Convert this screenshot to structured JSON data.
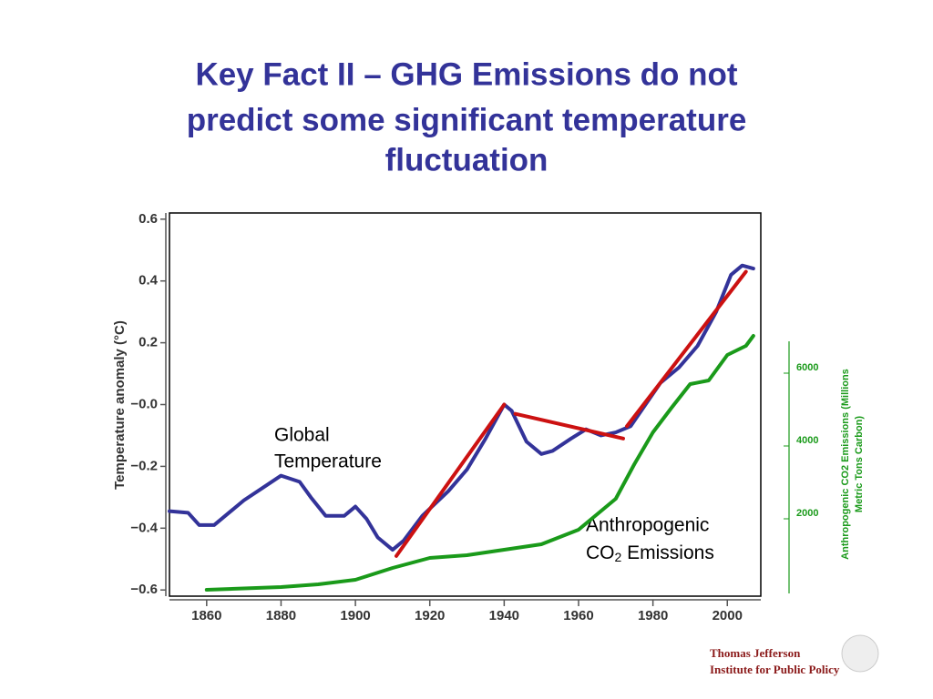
{
  "title_lines": [
    "Key Fact II – GHG Emissions do not",
    "predict some significant temperature",
    "fluctuation"
  ],
  "chart_data": {
    "type": "line",
    "ylabel": "Temperature anomaly (°C)",
    "y2label_lines": [
      "Anthropogenic CO2 Emissions (Millions",
      "Metric Tons Carbon)"
    ],
    "xlim": [
      1850,
      2009
    ],
    "xticks": [
      1860,
      1880,
      1900,
      1920,
      1940,
      1960,
      1980,
      2000
    ],
    "ylim": [
      -0.62,
      0.62
    ],
    "yticks": [
      0.6,
      0.4,
      0.2,
      {
        "value": 0,
        "label": "−0.0"
      },
      {
        "value": -0.2,
        "label": "−0.2"
      },
      {
        "value": -0.4,
        "label": "−0.4"
      },
      {
        "value": -0.6,
        "label": "−0.6"
      }
    ],
    "y2lim": [
      -125,
      10400
    ],
    "y2ticks": [
      2000,
      4000,
      6000
    ],
    "annotations": [
      {
        "lines": [
          "Global",
          "Temperature"
        ]
      },
      {
        "lines": [
          "Anthropogenic"
        ],
        "formula": [
          "CO",
          "2",
          " Emissions"
        ]
      }
    ],
    "series": [
      {
        "color": "#333399",
        "x": [
          1850,
          1855,
          1858,
          1862,
          1866,
          1870,
          1875,
          1880,
          1885,
          1888,
          1892,
          1897,
          1900,
          1903,
          1906,
          1910,
          1913,
          1918,
          1925,
          1930,
          1935,
          1940,
          1942,
          1946,
          1950,
          1953,
          1958,
          1962,
          1966,
          1970,
          1974,
          1978,
          1982,
          1987,
          1992,
          1997,
          2001,
          2004,
          2007
        ],
        "values": [
          -0.345,
          -0.35,
          -0.39,
          -0.39,
          -0.35,
          -0.31,
          -0.27,
          -0.23,
          -0.25,
          -0.3,
          -0.36,
          -0.36,
          -0.33,
          -0.37,
          -0.43,
          -0.47,
          -0.44,
          -0.36,
          -0.28,
          -0.21,
          -0.11,
          0.0,
          -0.02,
          -0.12,
          -0.16,
          -0.15,
          -0.11,
          -0.08,
          -0.1,
          -0.09,
          -0.07,
          0.0,
          0.07,
          0.12,
          0.19,
          0.3,
          0.42,
          0.45,
          0.44
        ]
      },
      {
        "color": "#1a9a1a",
        "axis": "y2",
        "x": [
          1860,
          1880,
          1890,
          1900,
          1910,
          1920,
          1930,
          1940,
          1950,
          1960,
          1965,
          1970,
          1975,
          1980,
          1985,
          1990,
          1995,
          2000,
          2005,
          2007
        ],
        "values": [
          50,
          125,
          200,
          325,
          650,
          925,
          1000,
          1150,
          1300,
          1700,
          2125,
          2550,
          3500,
          4375,
          5050,
          5700,
          5800,
          6500,
          6750,
          7025
        ]
      },
      {
        "color": "#cc1111",
        "x": [
          1911,
          1940
        ],
        "values": [
          -0.49,
          0.0
        ]
      },
      {
        "color": "#cc1111",
        "x": [
          1943,
          1972
        ],
        "values": [
          -0.03,
          -0.11
        ]
      },
      {
        "color": "#cc1111",
        "x": [
          1973,
          2005
        ],
        "values": [
          -0.07,
          0.43
        ]
      }
    ]
  },
  "logo_lines": [
    "Thomas Jefferson",
    "Institute for Public Policy"
  ]
}
